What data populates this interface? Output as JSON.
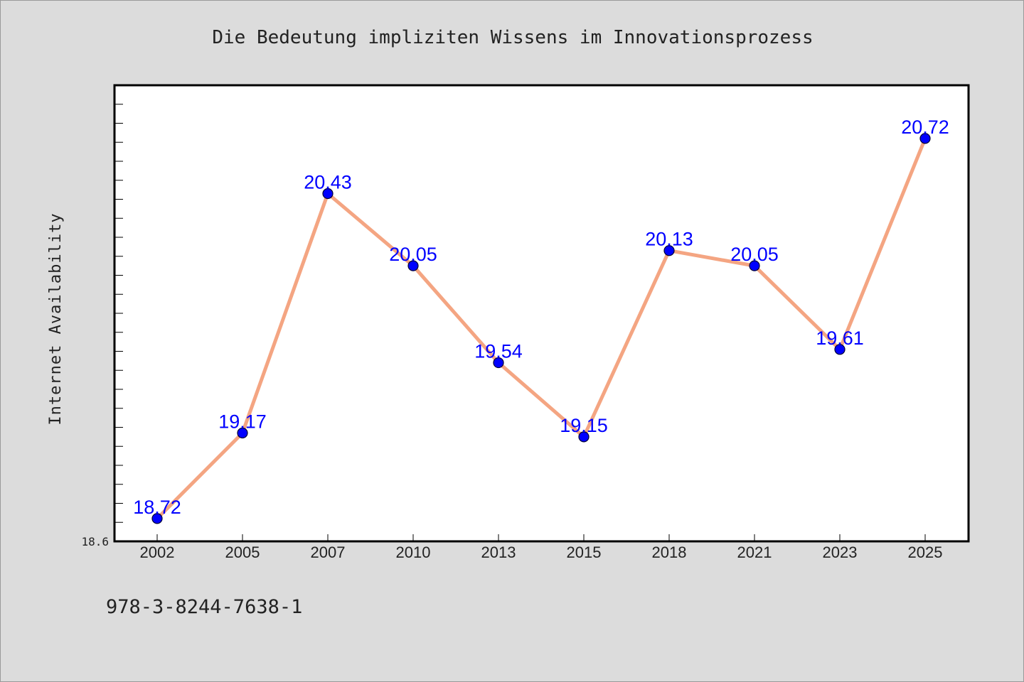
{
  "colors": {
    "background": "#dcdcdc",
    "plot_background": "#ffffff",
    "line": "#f4a582",
    "marker": "#0000ff",
    "data_label": "#0000ff",
    "text": "#222222"
  },
  "footer": {
    "isbn": "978-3-8244-7638-1"
  },
  "chart_data": {
    "type": "line",
    "title": "Die Bedeutung impliziten Wissens im Innovationsprozess",
    "xlabel": "",
    "ylabel": "Internet Availability",
    "categories": [
      "2002",
      "2005",
      "2007",
      "2010",
      "2013",
      "2015",
      "2018",
      "2021",
      "2023",
      "2025"
    ],
    "values": [
      18.72,
      19.17,
      20.43,
      20.05,
      19.54,
      19.15,
      20.13,
      20.05,
      19.61,
      20.72
    ],
    "data_labels": [
      "18.72",
      "19.17",
      "20.43",
      "20.05",
      "19.54",
      "19.15",
      "20.13",
      "20.05",
      "19.61",
      "20.72"
    ],
    "ylim": [
      18.6,
      21.0
    ],
    "ytick_labels": [
      "18.6"
    ],
    "grid": false,
    "legend": "none",
    "marker": "circle"
  }
}
